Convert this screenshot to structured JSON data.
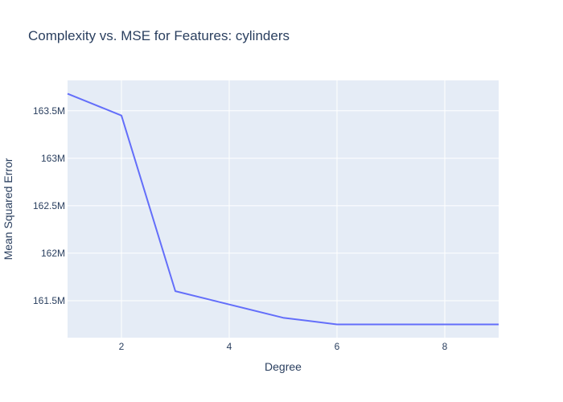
{
  "chart_data": {
    "type": "line",
    "title": "Complexity vs. MSE for Features: cylinders",
    "xlabel": "Degree",
    "ylabel": "Mean Squared Error",
    "xlim": [
      1,
      9
    ],
    "ylim": [
      161.11,
      163.82
    ],
    "x_ticks": [
      2,
      4,
      6,
      8
    ],
    "y_ticks": [
      {
        "value": 161.5,
        "label": "161.5M"
      },
      {
        "value": 162.0,
        "label": "162M"
      },
      {
        "value": 162.5,
        "label": "162.5M"
      },
      {
        "value": 163.0,
        "label": "163M"
      },
      {
        "value": 163.5,
        "label": "163.5M"
      }
    ],
    "y_unit": "millions",
    "grid": true,
    "series": [
      {
        "color": "#636efa",
        "x": [
          1,
          2,
          3,
          4,
          5,
          6,
          7,
          8,
          9
        ],
        "y": [
          163.68,
          163.45,
          161.6,
          161.46,
          161.32,
          161.25,
          161.25,
          161.25,
          161.25
        ]
      }
    ],
    "colors": {
      "plot_background": "#e5ecf6",
      "gridline": "#ffffff",
      "text": "#2a3f5f"
    }
  }
}
